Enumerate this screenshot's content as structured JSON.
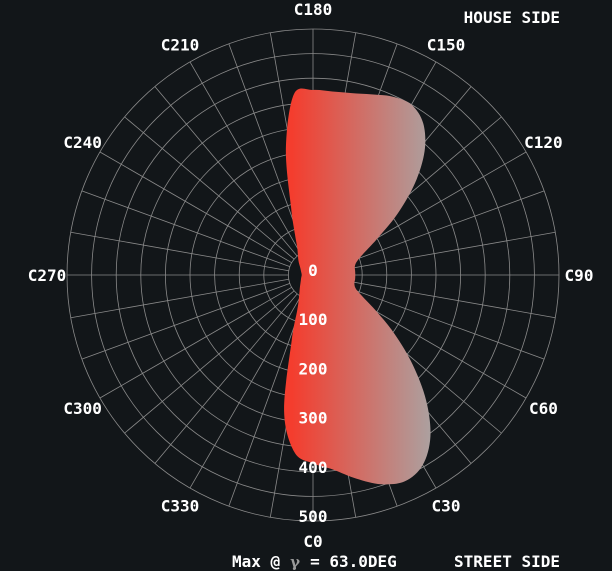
{
  "chart_data": {
    "type": "polar-area",
    "house_side_label": "HOUSE SIDE",
    "street_side_label": "STREET SIDE",
    "footer": {
      "prefix": "Max @",
      "symbol": "γ",
      "value": "= 63.0DEG"
    },
    "radial_ticks": [
      "0",
      "100",
      "200",
      "300",
      "400",
      "500"
    ],
    "radial_range": [
      0,
      500
    ],
    "angle_labels": [
      {
        "label": "C0",
        "deg": 0
      },
      {
        "label": "C30",
        "deg": 30
      },
      {
        "label": "C60",
        "deg": 60
      },
      {
        "label": "C90",
        "deg": 90
      },
      {
        "label": "C120",
        "deg": 120
      },
      {
        "label": "C150",
        "deg": 150
      },
      {
        "label": "C180",
        "deg": 180
      },
      {
        "label": "C210",
        "deg": 210
      },
      {
        "label": "C240",
        "deg": 240
      },
      {
        "label": "C270",
        "deg": 270
      },
      {
        "label": "C300",
        "deg": 300
      },
      {
        "label": "C330",
        "deg": 330
      }
    ],
    "series": [
      {
        "values": [
          {
            "c": 0,
            "r": 383
          },
          {
            "c": 6,
            "r": 398
          },
          {
            "c": 12,
            "r": 423
          },
          {
            "c": 18,
            "r": 447
          },
          {
            "c": 24,
            "r": 459
          },
          {
            "c": 30,
            "r": 446
          },
          {
            "c": 36,
            "r": 406
          },
          {
            "c": 42,
            "r": 344
          },
          {
            "c": 48,
            "r": 273
          },
          {
            "c": 54,
            "r": 206
          },
          {
            "c": 60,
            "r": 150
          },
          {
            "c": 66,
            "r": 112
          },
          {
            "c": 72,
            "r": 92
          },
          {
            "c": 78,
            "r": 86
          },
          {
            "c": 84,
            "r": 86
          },
          {
            "c": 90,
            "r": 86
          },
          {
            "c": 96,
            "r": 86
          },
          {
            "c": 102,
            "r": 87
          },
          {
            "c": 108,
            "r": 95
          },
          {
            "c": 114,
            "r": 116
          },
          {
            "c": 120,
            "r": 154
          },
          {
            "c": 126,
            "r": 213
          },
          {
            "c": 132,
            "r": 279
          },
          {
            "c": 138,
            "r": 339
          },
          {
            "c": 144,
            "r": 381
          },
          {
            "c": 150,
            "r": 400
          },
          {
            "c": 156,
            "r": 397
          },
          {
            "c": 162,
            "r": 386
          },
          {
            "c": 168,
            "r": 378
          },
          {
            "c": 174,
            "r": 375
          },
          {
            "c": 180,
            "r": 376
          },
          {
            "c": 186,
            "r": 370
          },
          {
            "c": 192,
            "r": 265
          },
          {
            "c": 198,
            "r": 144
          },
          {
            "c": 204,
            "r": 90
          },
          {
            "c": 210,
            "r": 64
          },
          {
            "c": 225,
            "r": 42
          },
          {
            "c": 240,
            "r": 30
          },
          {
            "c": 255,
            "r": 25
          },
          {
            "c": 270,
            "r": 23
          },
          {
            "c": 285,
            "r": 25
          },
          {
            "c": 300,
            "r": 29
          },
          {
            "c": 315,
            "r": 38
          },
          {
            "c": 330,
            "r": 58
          },
          {
            "c": 336,
            "r": 79
          },
          {
            "c": 342,
            "r": 140
          },
          {
            "c": 348,
            "r": 283
          },
          {
            "c": 354,
            "r": 362
          }
        ]
      }
    ],
    "colors": {
      "background": "#121619",
      "grid": "#8a8a8a",
      "fill_start": "#f43d2e",
      "fill_end": "#a7a7a7",
      "text": "#ffffff",
      "gamma": "#9a9a9a"
    }
  }
}
